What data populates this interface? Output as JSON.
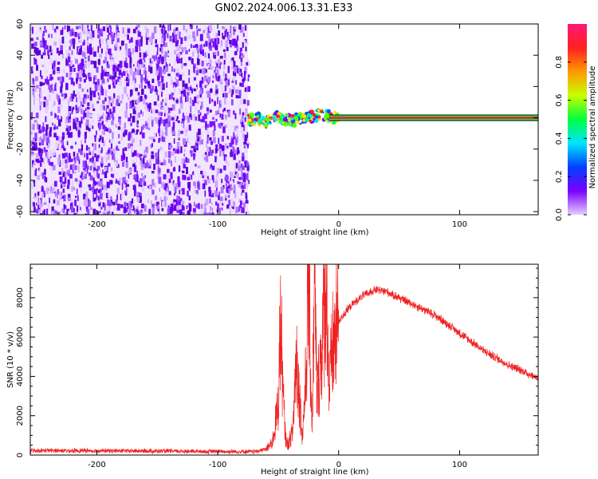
{
  "title": "GN02.2024.006.13.31.E33",
  "colors": {
    "snr_line": "#ee2222",
    "spectrum_scatter": "#6a00ee",
    "spectrum_band": "#ee2244",
    "axis": "#000000",
    "colorbar_stops": [
      "#e6ccff",
      "#7a00ff",
      "#0040ff",
      "#00e5ff",
      "#00ff40",
      "#c8ff00",
      "#ff9900",
      "#ff2020",
      "#ff1a75"
    ]
  },
  "chart_data": [
    {
      "type": "heatmap",
      "xlabel": "Height of straight line (km)",
      "ylabel": "Frequency (Hz)",
      "xlim": [
        -255,
        165
      ],
      "ylim": [
        -62,
        60
      ],
      "x_ticks": [
        -200,
        -100,
        0,
        100
      ],
      "y_ticks": [
        -60,
        -40,
        -20,
        0,
        20,
        40,
        60
      ],
      "y_tick_labels": [
        "-60",
        "-40",
        "-20",
        "0",
        "20",
        "40",
        "60"
      ],
      "noise_region_x": [
        -255,
        -75
      ],
      "noise_region_y": [
        -62,
        60
      ],
      "signal_wander": [
        {
          "x": -75,
          "y": -2
        },
        {
          "x": -68,
          "y": 0
        },
        {
          "x": -60,
          "y": -3
        },
        {
          "x": -52,
          "y": 1
        },
        {
          "x": -45,
          "y": -1
        },
        {
          "x": -38,
          "y": -2
        },
        {
          "x": -30,
          "y": 0
        },
        {
          "x": -22,
          "y": 1
        },
        {
          "x": -15,
          "y": 2
        },
        {
          "x": -8,
          "y": 1
        },
        {
          "x": 0,
          "y": 0
        }
      ],
      "signal_band_x": [
        -8,
        165
      ],
      "signal_band_y": 0,
      "colorbar": {
        "label": "Normalized spectral amplitude",
        "range": [
          0,
          1
        ],
        "ticks": [
          0.0,
          0.2,
          0.4,
          0.6,
          0.8
        ],
        "tick_labels": [
          "0.0",
          "0.2",
          "0.4",
          "0.6",
          "0.8"
        ]
      },
      "grid": false
    },
    {
      "type": "line",
      "xlabel": "Height of straight line (km)",
      "ylabel": "SNR (10 * v/v)",
      "xlim": [
        -255,
        165
      ],
      "ylim": [
        0,
        9700
      ],
      "x_ticks": [
        -200,
        -100,
        0,
        100
      ],
      "y_ticks": [
        0,
        2000,
        4000,
        6000,
        8000
      ],
      "series": [
        {
          "color": "#ee2222",
          "x": [
            -255,
            -200,
            -150,
            -100,
            -70,
            -60,
            -55,
            -50,
            -48,
            -46,
            -44,
            -42,
            -38,
            -35,
            -30,
            -27,
            -25,
            -22,
            -20,
            -18,
            -15,
            -12,
            -10,
            -8,
            -5,
            0,
            10,
            20,
            30,
            40,
            50,
            60,
            80,
            100,
            120,
            140,
            165
          ],
          "y": [
            230,
            220,
            200,
            180,
            170,
            300,
            600,
            2500,
            7100,
            3000,
            900,
            500,
            1200,
            5200,
            900,
            4100,
            9200,
            1300,
            9100,
            3000,
            4800,
            7200,
            9700,
            3200,
            5400,
            6800,
            7600,
            8100,
            8400,
            8300,
            8000,
            7700,
            7100,
            6200,
            5300,
            4600,
            3900
          ]
        }
      ],
      "grid": false
    }
  ]
}
